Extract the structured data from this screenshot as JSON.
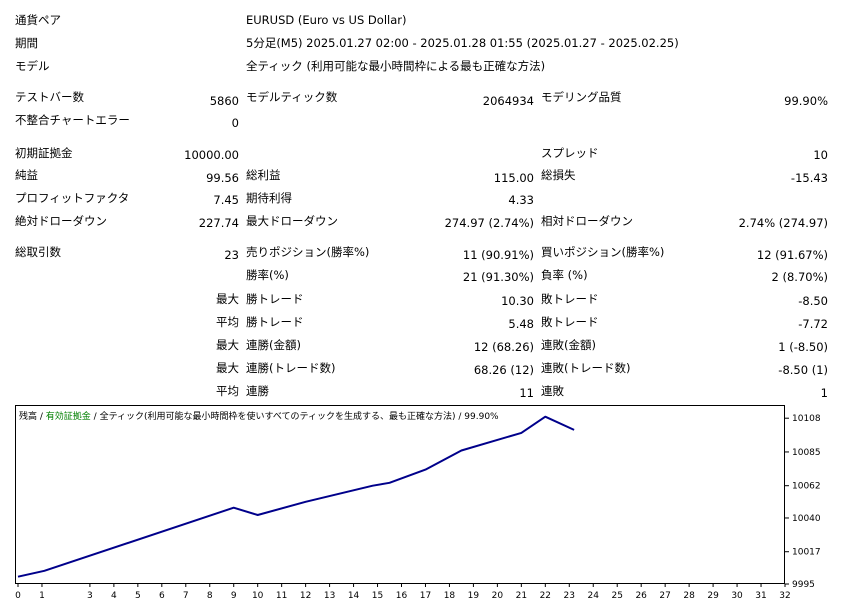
{
  "header": {
    "symbol_label": "通貨ペア",
    "symbol_value": "EURUSD (Euro vs US Dollar)",
    "period_label": "期間",
    "period_value": "5分足(M5) 2025.01.27 02:00 - 2025.01.28 01:55 (2025.01.27 - 2025.02.25)",
    "model_label": "モデル",
    "model_value": "全ティック (利用可能な最小時間枠による最も正確な方法)"
  },
  "stats": {
    "bars_label": "テストバー数",
    "bars_value": "5860",
    "ticks_label": "モデルティック数",
    "ticks_value": "2064934",
    "quality_label": "モデリング品質",
    "quality_value": "99.90%",
    "mismatch_label": "不整合チャートエラー",
    "mismatch_value": "0",
    "deposit_label": "初期証拠金",
    "deposit_value": "10000.00",
    "spread_label": "スプレッド",
    "spread_value": "10",
    "net_label": "純益",
    "net_value": "99.56",
    "gross_profit_label": "総利益",
    "gross_profit_value": "115.00",
    "gross_loss_label": "総損失",
    "gross_loss_value": "-15.43",
    "pf_label": "プロフィットファクタ",
    "pf_value": "7.45",
    "payoff_label": "期待利得",
    "payoff_value": "4.33",
    "abs_dd_label": "絶対ドローダウン",
    "abs_dd_value": "227.74",
    "max_dd_label": "最大ドローダウン",
    "max_dd_value": "274.97 (2.74%)",
    "rel_dd_label": "相対ドローダウン",
    "rel_dd_value": "2.74% (274.97)",
    "total_trades_label": "総取引数",
    "total_trades_value": "23",
    "short_label": "売りポジション(勝率%)",
    "short_value": "11 (90.91%)",
    "long_label": "買いポジション(勝率%)",
    "long_value": "12 (91.67%)",
    "win_rate_label": "勝率(%)",
    "win_rate_value": "21 (91.30%)",
    "loss_rate_label": "負率 (%)",
    "loss_rate_value": "2 (8.70%)",
    "max_prefix": "最大",
    "avg_prefix": "平均",
    "largest_win_label": "勝トレード",
    "largest_win_value": "10.30",
    "largest_loss_label": "敗トレード",
    "largest_loss_value": "-8.50",
    "avg_win_label": "勝トレード",
    "avg_win_value": "5.48",
    "avg_loss_label": "敗トレード",
    "avg_loss_value": "-7.72",
    "cons_wins_amount_label": "連勝(金額)",
    "cons_wins_amount_value": "12 (68.26)",
    "cons_losses_amount_label": "連敗(金額)",
    "cons_losses_amount_value": "1 (-8.50)",
    "cons_wins_count_label": "連勝(トレード数)",
    "cons_wins_count_value": "68.26 (12)",
    "cons_losses_count_label": "連敗(トレード数)",
    "cons_losses_count_value": "-8.50 (1)",
    "avg_cons_wins_label": "連勝",
    "avg_cons_wins_value": "11",
    "avg_cons_losses_label": "連敗",
    "avg_cons_losses_value": "1"
  },
  "chart_legend": {
    "balance": "残高",
    "sep1": " / ",
    "equity": "有効証拠金",
    "sep2": " / ",
    "model": "全ティック(利用可能な最小時間枠を使いすべてのティックを生成する、最も正確な方法)",
    "sep3": " / ",
    "quality": "99.90%"
  },
  "chart_data": {
    "type": "line",
    "xlabel": "",
    "ylabel": "",
    "x_ticks": [
      0,
      1,
      3,
      4,
      5,
      6,
      7,
      8,
      9,
      10,
      11,
      12,
      13,
      14,
      15,
      16,
      17,
      18,
      19,
      20,
      21,
      22,
      23,
      24,
      25,
      26,
      27,
      28,
      29,
      30,
      31,
      32
    ],
    "y_ticks": [
      9995,
      10017,
      10040,
      10062,
      10085,
      10108
    ],
    "xlim": [
      0,
      32
    ],
    "ylim": [
      9995,
      10117
    ],
    "series": [
      {
        "color": "#00008b",
        "x": [
          0,
          1.1,
          9,
          10,
          12,
          14.8,
          15.5,
          17,
          18.5,
          21,
          22,
          23.2
        ],
        "y": [
          10000,
          10004,
          10047,
          10042,
          10051,
          10062,
          10064,
          10073,
          10086,
          10098,
          10109,
          10100
        ]
      }
    ],
    "grid": false
  }
}
